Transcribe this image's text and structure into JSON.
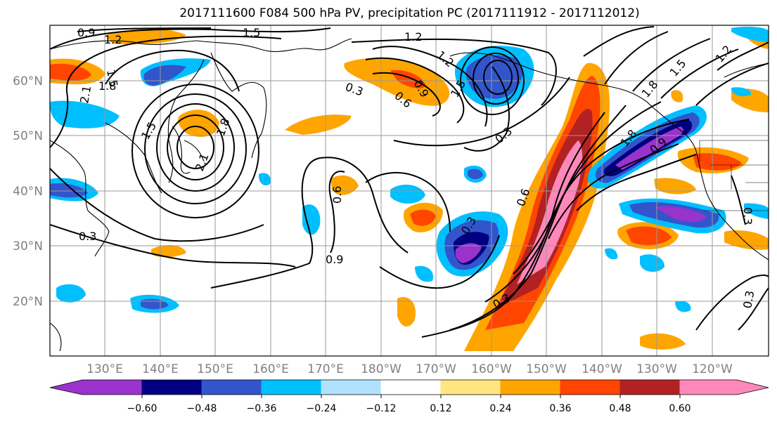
{
  "title": "2017111600 F084 500 hPa PV, precipitation PC (2017111912 - 2017112012)",
  "map": {
    "lat_labels": [
      "60°N",
      "50°N",
      "40°N",
      "30°N",
      "20°N"
    ],
    "lon_labels": [
      "130°E",
      "140°E",
      "150°E",
      "160°E",
      "170°E",
      "180°W",
      "170°W",
      "160°W",
      "150°W",
      "140°W",
      "130°W",
      "120°W"
    ],
    "contour_labels": [
      "0.9",
      "1.2",
      "1.5",
      "1.2",
      "1.5",
      "1.8",
      "2.1",
      "1.5",
      "1.8",
      "2.1",
      "0.3",
      "0.6",
      "0.9",
      "1.2",
      "1.5",
      "0.3",
      "0.9",
      "0.6",
      "0.3",
      "0.3",
      "0.6",
      "1.8",
      "0.9",
      "0.3",
      "0.3",
      "0.3",
      "1.2",
      "1.5",
      "1.8"
    ]
  },
  "colorbar": {
    "colors": [
      "#9933cc",
      "#000080",
      "#3355cc",
      "#00bfff",
      "#b0e2ff",
      "#ffffff",
      "#ffe680",
      "#ffa500",
      "#ff4500",
      "#b22222",
      "#ff88bb"
    ],
    "tick_labels": [
      "−0.60",
      "−0.48",
      "−0.36",
      "−0.24",
      "−0.12",
      "0.12",
      "0.24",
      "0.36",
      "0.48",
      "0.60"
    ]
  }
}
